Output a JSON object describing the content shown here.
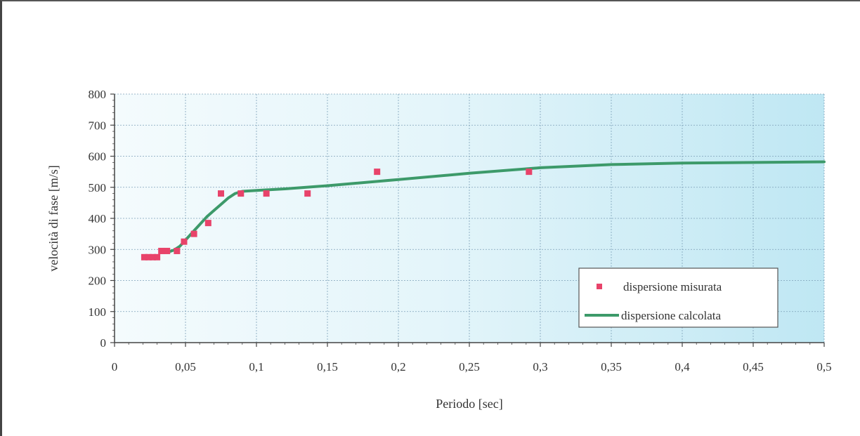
{
  "chart_data": {
    "type": "scatter",
    "title": "",
    "xlabel": "Periodo [sec]",
    "ylabel": "velocità di fase [m/s]",
    "xlim": [
      0,
      0.5
    ],
    "ylim": [
      0,
      800
    ],
    "x_ticks": [
      "0",
      "0,05",
      "0,1",
      "0,15",
      "0,2",
      "0,25",
      "0,3",
      "0,35",
      "0,4",
      "0,45",
      "0,5"
    ],
    "y_ticks": [
      "0",
      "100",
      "200",
      "300",
      "400",
      "500",
      "600",
      "700",
      "800"
    ],
    "grid": true,
    "legend_position": "bottom-right",
    "series": [
      {
        "name": "dispersione misurata",
        "type": "scatter",
        "color": "#e8436a",
        "x": [
          0.021,
          0.024,
          0.027,
          0.03,
          0.033,
          0.037,
          0.044,
          0.049,
          0.056,
          0.066,
          0.075,
          0.089,
          0.107,
          0.136,
          0.185,
          0.292
        ],
        "y": [
          275,
          275,
          275,
          275,
          295,
          295,
          295,
          325,
          350,
          385,
          480,
          480,
          480,
          480,
          550,
          550
        ]
      },
      {
        "name": "dispersione calcolata",
        "type": "line",
        "color": "#3d9a6a",
        "x": [
          0.033,
          0.038,
          0.042,
          0.046,
          0.05,
          0.055,
          0.06,
          0.065,
          0.07,
          0.075,
          0.08,
          0.085,
          0.09,
          0.1,
          0.12,
          0.15,
          0.2,
          0.25,
          0.3,
          0.35,
          0.4,
          0.45,
          0.5
        ],
        "y": [
          290,
          292,
          298,
          310,
          330,
          355,
          380,
          405,
          425,
          445,
          465,
          480,
          487,
          490,
          495,
          505,
          525,
          545,
          563,
          573,
          578,
          580,
          582
        ]
      }
    ]
  }
}
